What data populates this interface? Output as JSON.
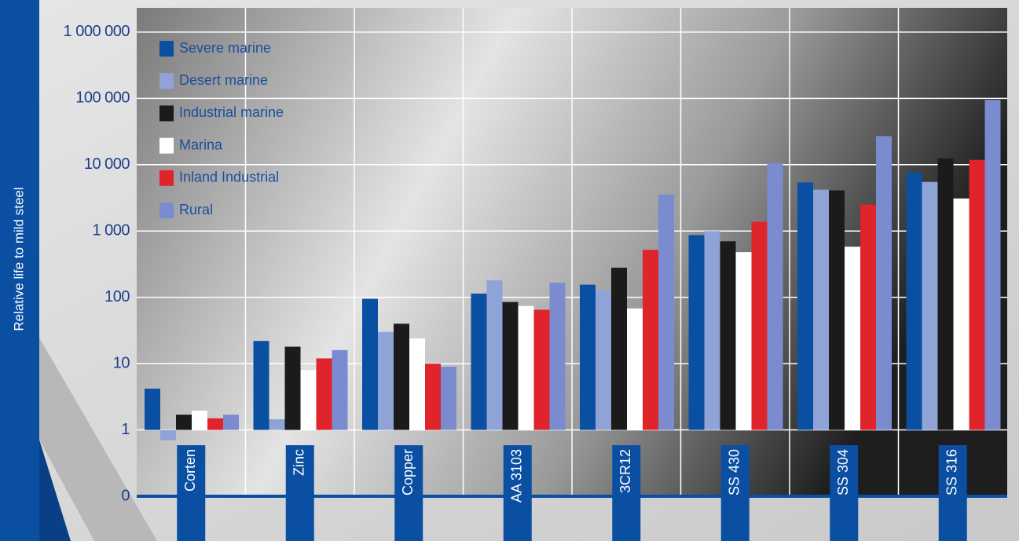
{
  "chart_data": {
    "type": "bar",
    "y_label": "Relative life to mild steel",
    "categories": [
      "Corten",
      "Zinc",
      "Copper",
      "AA 3103",
      "3CR12",
      "SS 430",
      "SS 304",
      "SS 316"
    ],
    "series": [
      {
        "name": "Severe marine",
        "color": "#0b4fa3",
        "values": [
          4.2,
          22,
          95,
          114,
          155,
          870,
          5400,
          7600
        ]
      },
      {
        "name": "Desert marine",
        "color": "#8fa3d6",
        "values": [
          0.7,
          1.45,
          30,
          180,
          127,
          1000,
          4200,
          5500
        ]
      },
      {
        "name": "Industrial marine",
        "color": "#1b1b1b",
        "values": [
          1.7,
          18,
          40,
          85,
          280,
          700,
          4100,
          12500
        ]
      },
      {
        "name": "Marina",
        "color": "#ffffff",
        "values": [
          1.95,
          8,
          24,
          74,
          68,
          480,
          580,
          3100
        ]
      },
      {
        "name": "Inland Industrial",
        "color": "#e0242b",
        "values": [
          1.5,
          12,
          10,
          65,
          520,
          1380,
          2500,
          11800
        ]
      },
      {
        "name": "Rural",
        "color": "#7b8bd0",
        "values": [
          1.7,
          16,
          9,
          166,
          3550,
          10500,
          27000,
          95000
        ]
      }
    ],
    "log_scale": true,
    "ylim": [
      0.1,
      1500000
    ],
    "yticks": [
      {
        "value": 0.1,
        "label": "0"
      },
      1,
      10,
      100,
      {
        "value": 1000,
        "label": "1 000"
      },
      {
        "value": 10000,
        "label": "10 000"
      },
      {
        "value": 100000,
        "label": "100 000"
      },
      {
        "value": 1000000,
        "label": "1 000 000"
      }
    ],
    "grid": true,
    "legend": "top-left"
  }
}
